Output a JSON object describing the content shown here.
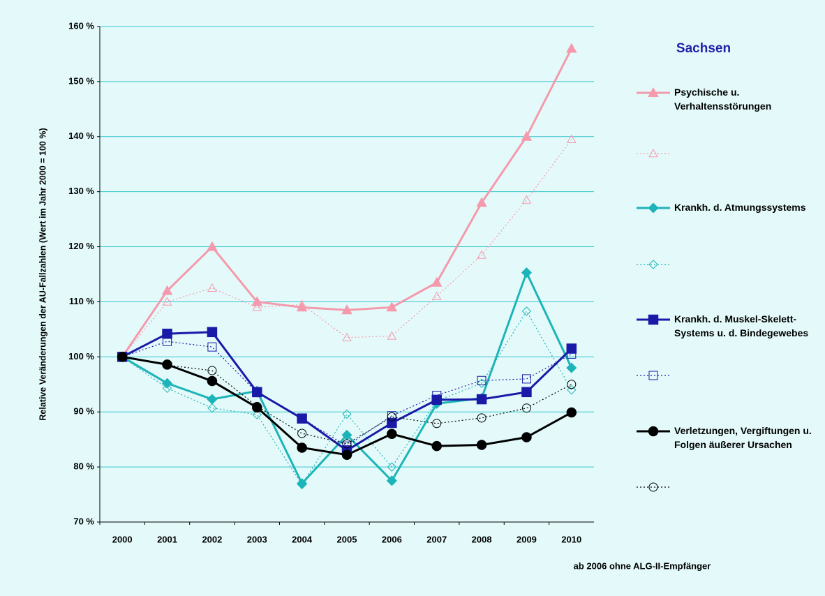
{
  "chart_data": {
    "type": "line",
    "title": "Sachsen",
    "y_label": "Relative Veränderungen der AU-Fallzahlen (Wert im Jahr 2000 = 100 %)",
    "footnote": "ab 2006 ohne ALG-II-Empfänger",
    "categories": [
      "2000",
      "2001",
      "2002",
      "2003",
      "2004",
      "2005",
      "2006",
      "2007",
      "2008",
      "2009",
      "2010"
    ],
    "ylim": [
      70,
      160
    ],
    "yticks": [
      {
        "value": 70,
        "label": "70 %"
      },
      {
        "value": 80,
        "label": "80 %"
      },
      {
        "value": 90,
        "label": "90 %"
      },
      {
        "value": 100,
        "label": "100 %"
      },
      {
        "value": 110,
        "label": "110 %"
      },
      {
        "value": 120,
        "label": "120 %"
      },
      {
        "value": 130,
        "label": "130 %"
      },
      {
        "value": 140,
        "label": "140 %"
      },
      {
        "value": 150,
        "label": "150 %"
      },
      {
        "value": 160,
        "label": "160 %"
      }
    ],
    "grid": true,
    "series": [
      {
        "name": "Psychische u. Verhaltensstörungen",
        "color": "#f49aac",
        "marker": "triangle",
        "dashed": false,
        "values": [
          100,
          112,
          120,
          110,
          109,
          108.5,
          109,
          113.5,
          128,
          140,
          156
        ]
      },
      {
        "color": "#f49aac",
        "marker": "triangle",
        "dashed": true,
        "values": [
          100,
          110,
          112.5,
          109,
          109.5,
          103.5,
          103.8,
          111,
          118.5,
          128.5,
          139.5
        ]
      },
      {
        "name": "Krankh. d. Atmungssystems",
        "color": "#1cb4b8",
        "marker": "diamond",
        "dashed": false,
        "values": [
          100,
          95.2,
          92.3,
          93.8,
          77,
          85.8,
          77.5,
          91.5,
          92.5,
          115.3,
          98
        ]
      },
      {
        "color": "#1cb4b8",
        "marker": "diamond",
        "dashed": true,
        "values": [
          100,
          94.3,
          90.7,
          89.5,
          76.8,
          89.6,
          80,
          92,
          95.2,
          108.3,
          94
        ]
      },
      {
        "name": "Krankh. d. Muskel-Skelett-Systems u. d. Bindegewebes",
        "color": "#1a1aa8",
        "marker": "square",
        "dashed": false,
        "values": [
          100,
          104.2,
          104.5,
          93.6,
          88.8,
          83,
          88,
          92.2,
          92.3,
          93.6,
          101.5
        ]
      },
      {
        "color": "#1a1aa8",
        "marker": "square",
        "dashed": true,
        "values": [
          100,
          102.8,
          101.8,
          93.5,
          88.8,
          83.8,
          89.3,
          93,
          95.7,
          96,
          100.5
        ]
      },
      {
        "name": "Verletzungen, Vergiftungen u. Folgen äußerer Ursachen",
        "color": "#000000",
        "marker": "circle",
        "dashed": false,
        "values": [
          100,
          98.6,
          95.6,
          90.8,
          83.5,
          82.2,
          86,
          83.8,
          84,
          85.4,
          89.9
        ]
      },
      {
        "color": "#000000",
        "marker": "circle",
        "dashed": true,
        "values": [
          100,
          98.5,
          97.5,
          91,
          86.1,
          84.2,
          89.1,
          87.9,
          88.9,
          90.7,
          95
        ]
      }
    ]
  }
}
